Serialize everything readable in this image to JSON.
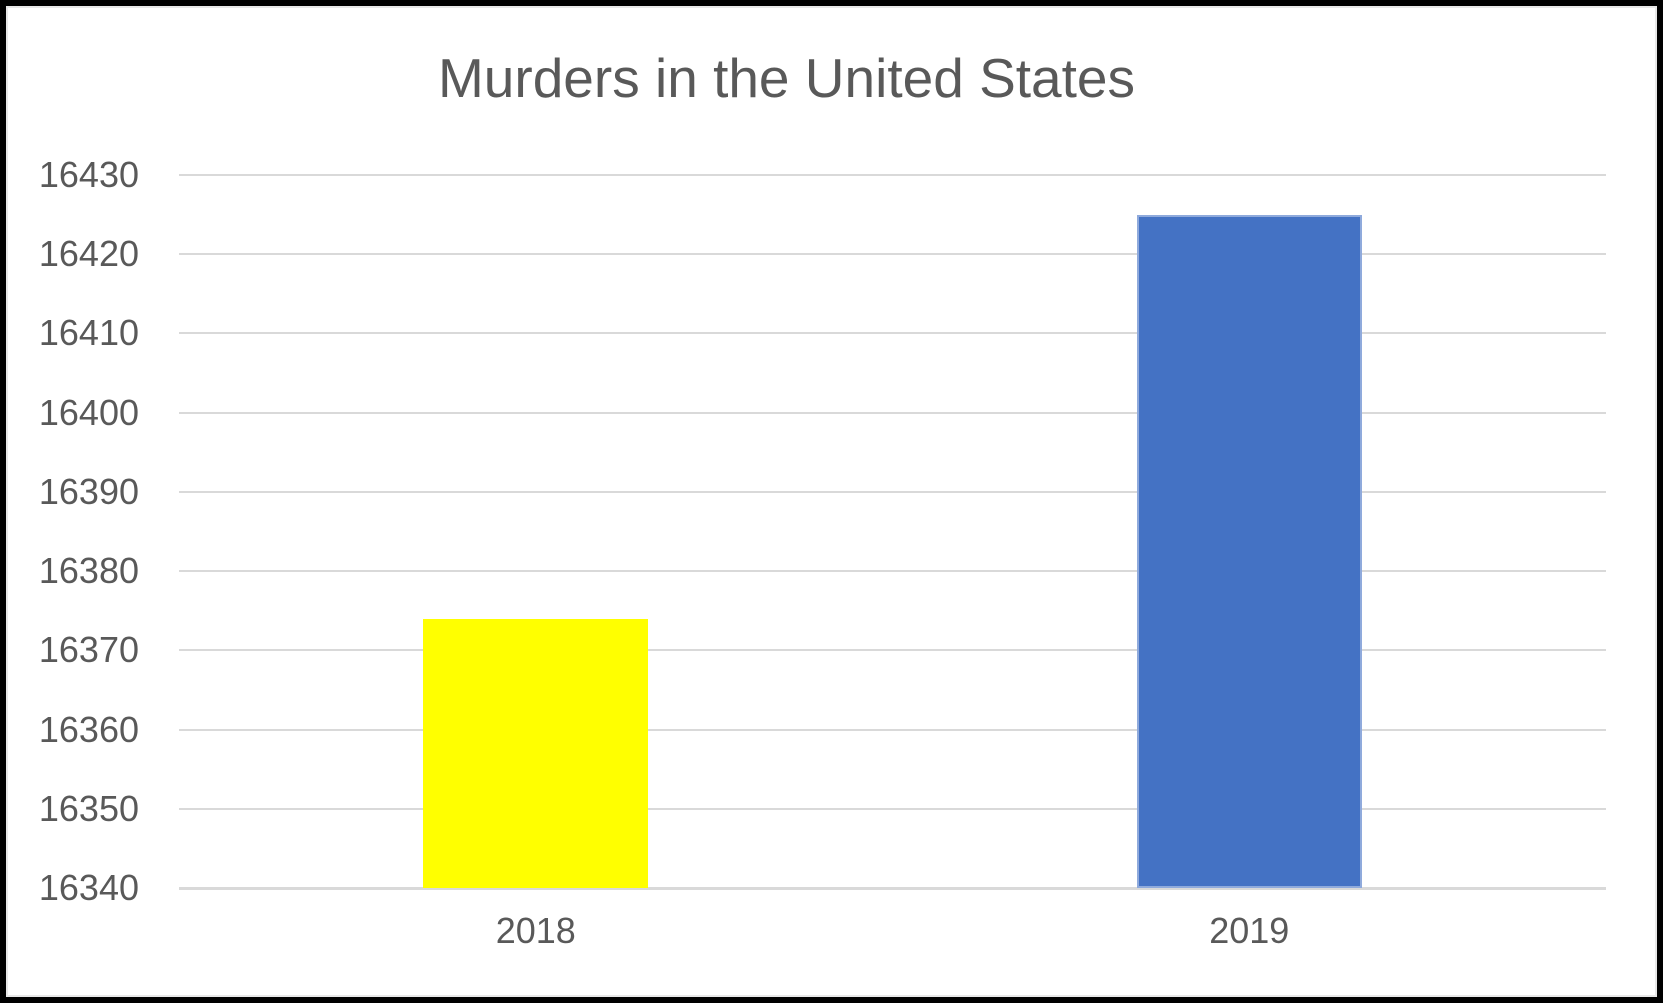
{
  "chart_data": {
    "type": "bar",
    "title": "Murders in the United States",
    "categories": [
      "2018",
      "2019"
    ],
    "values": [
      16374,
      16425
    ],
    "series": [
      {
        "name": "2018",
        "value": 16374,
        "color": "#FFFF00",
        "border_color": "#FFFF00"
      },
      {
        "name": "2019",
        "value": 16425,
        "color": "#4472C4",
        "border_color": "#8FAADC"
      }
    ],
    "xlabel": "",
    "ylabel": "",
    "ylim": [
      16340,
      16430
    ],
    "ytick_step": 10,
    "yticks": [
      16430,
      16420,
      16410,
      16400,
      16390,
      16380,
      16370,
      16360,
      16350,
      16340
    ],
    "grid": "horizontal",
    "legend": "none",
    "colors": {
      "gridline": "#d9d9d9",
      "text": "#595959",
      "background": "#ffffff",
      "frame_border": "#000000",
      "bar_2018": "#FFFF00",
      "bar_2019": "#4472C4"
    }
  }
}
